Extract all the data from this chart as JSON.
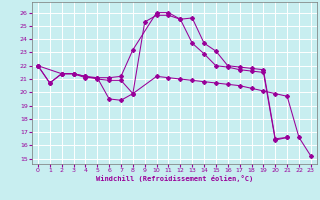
{
  "bg_color": "#c8eef0",
  "grid_color": "#ffffff",
  "line_color": "#990099",
  "xlabel": "Windchill (Refroidissement éolien,°C)",
  "xlim": [
    -0.5,
    23.5
  ],
  "ylim": [
    14.6,
    26.8
  ],
  "xticks": [
    0,
    1,
    2,
    3,
    4,
    5,
    6,
    7,
    8,
    9,
    10,
    11,
    12,
    13,
    14,
    15,
    16,
    17,
    18,
    19,
    20,
    21,
    22,
    23
  ],
  "yticks": [
    15,
    16,
    17,
    18,
    19,
    20,
    21,
    22,
    23,
    24,
    25,
    26
  ],
  "series": [
    {
      "x": [
        0,
        1,
        2,
        3,
        4,
        5,
        6,
        7,
        8,
        10,
        11,
        12,
        13,
        14,
        15,
        16,
        17,
        18,
        19,
        20,
        21,
        22,
        23
      ],
      "y": [
        22,
        20.7,
        21.4,
        21.4,
        21.1,
        21.1,
        19.5,
        19.4,
        19.9,
        21.2,
        21.1,
        21.0,
        20.9,
        20.8,
        20.7,
        20.6,
        20.5,
        20.3,
        20.1,
        19.9,
        19.7,
        16.6,
        15.2
      ]
    },
    {
      "x": [
        0,
        1,
        2,
        3,
        4,
        5,
        6,
        7,
        8,
        10,
        11,
        12,
        13,
        14,
        15,
        16,
        17,
        18,
        19,
        20,
        21
      ],
      "y": [
        22,
        20.7,
        21.4,
        21.4,
        21.2,
        21.1,
        21.1,
        21.2,
        23.2,
        26.0,
        26.0,
        25.5,
        25.6,
        23.7,
        23.1,
        22.0,
        21.9,
        21.8,
        21.7,
        16.5,
        16.6
      ]
    },
    {
      "x": [
        0,
        2,
        3,
        4,
        5,
        6,
        7,
        8,
        9,
        10,
        11,
        12,
        13,
        14,
        15,
        16,
        17,
        18,
        19,
        20,
        21
      ],
      "y": [
        22,
        21.4,
        21.4,
        21.2,
        21.0,
        20.9,
        20.9,
        19.9,
        25.3,
        25.8,
        25.8,
        25.5,
        23.7,
        22.9,
        22.0,
        21.9,
        21.7,
        21.6,
        21.5,
        16.4,
        16.6
      ]
    }
  ]
}
